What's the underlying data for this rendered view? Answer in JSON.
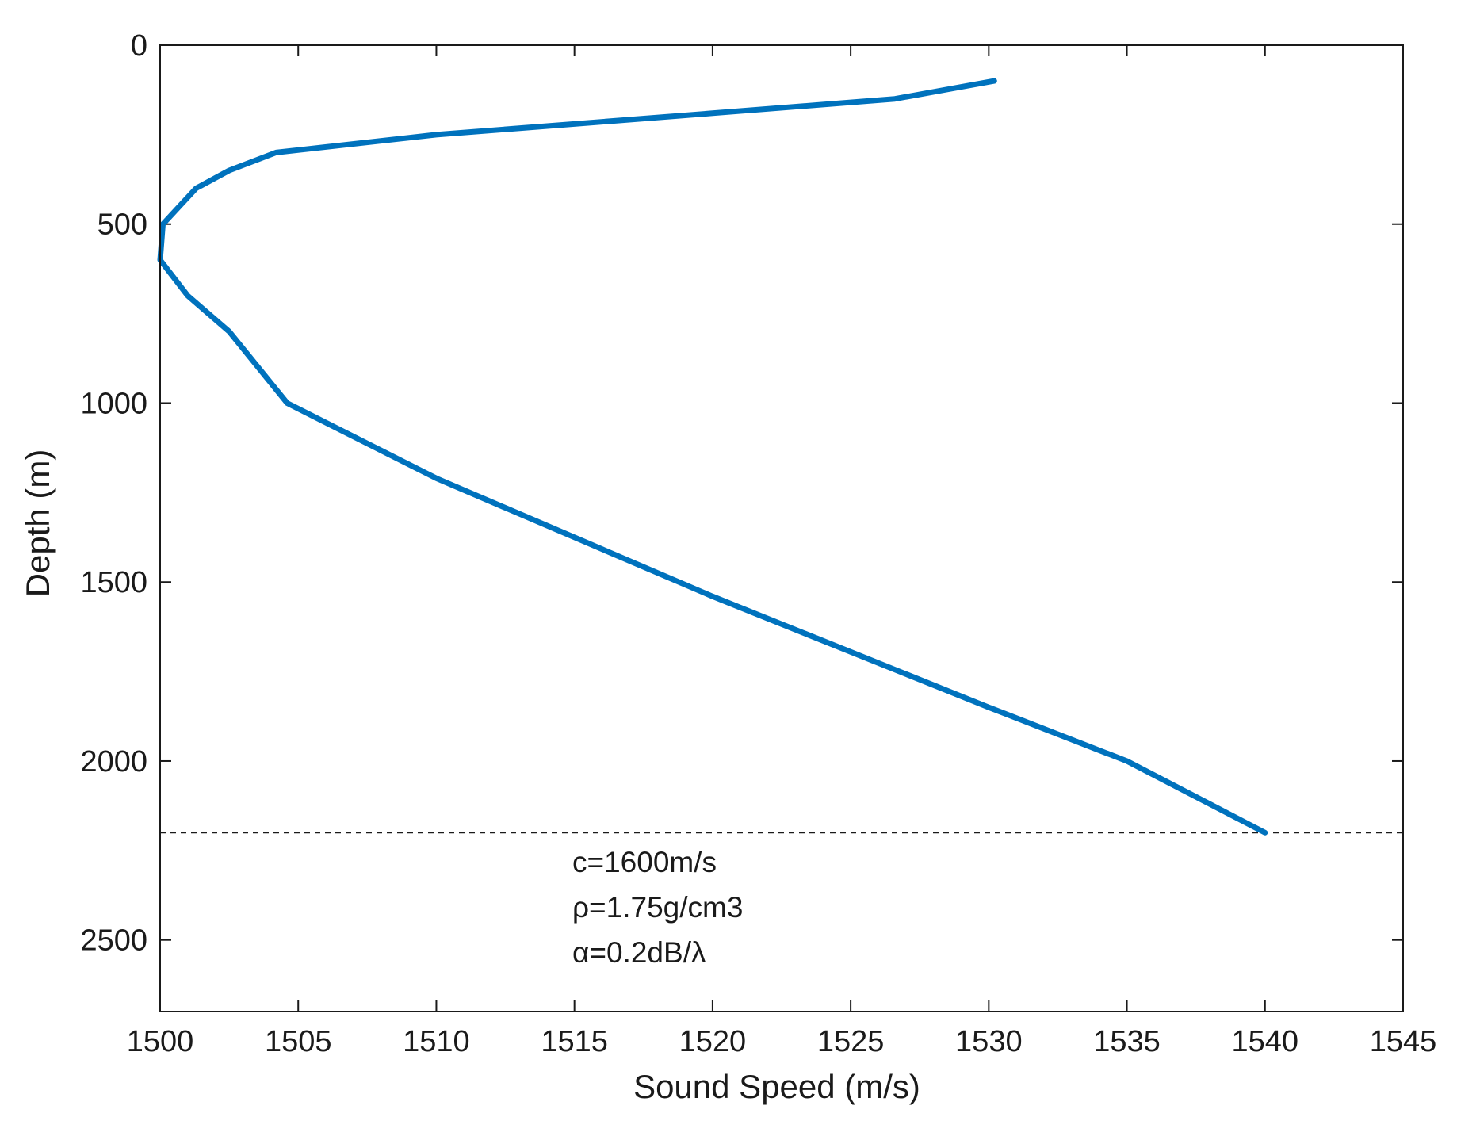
{
  "chart_data": {
    "type": "line",
    "title": "",
    "xlabel": "Sound Speed (m/s)",
    "ylabel": "Depth (m)",
    "xlim": [
      1500,
      1545
    ],
    "ylim": [
      0,
      2700
    ],
    "y_reversed": true,
    "xticks": [
      "1500",
      "1505",
      "1510",
      "1515",
      "1520",
      "1525",
      "1530",
      "1535",
      "1540",
      "1545"
    ],
    "yticks": [
      "0",
      "500",
      "1000",
      "1500",
      "2000",
      "2500"
    ],
    "grid": false,
    "series": [
      {
        "name": "",
        "color": "#0072bd",
        "points": [
          {
            "x": 1530.2,
            "y": 100
          },
          {
            "x": 1526.6,
            "y": 150
          },
          {
            "x": 1520.0,
            "y": 190
          },
          {
            "x": 1510.0,
            "y": 250
          },
          {
            "x": 1504.2,
            "y": 300
          },
          {
            "x": 1502.5,
            "y": 350
          },
          {
            "x": 1501.3,
            "y": 400
          },
          {
            "x": 1500.1,
            "y": 500
          },
          {
            "x": 1500.0,
            "y": 600
          },
          {
            "x": 1501.0,
            "y": 700
          },
          {
            "x": 1502.5,
            "y": 800
          },
          {
            "x": 1504.6,
            "y": 1000
          },
          {
            "x": 1510.0,
            "y": 1210
          },
          {
            "x": 1520.0,
            "y": 1540
          },
          {
            "x": 1530.0,
            "y": 1850
          },
          {
            "x": 1535.0,
            "y": 2000
          },
          {
            "x": 1540.0,
            "y": 2200
          }
        ]
      }
    ],
    "reference_line": {
      "y": 2200,
      "style": "dashed",
      "color": "#1a1a1a"
    },
    "annotations": {
      "speed": "c=1600m/s",
      "density": "ρ=1.75g/cm3",
      "attenuation": "α=0.2dB/λ"
    }
  }
}
